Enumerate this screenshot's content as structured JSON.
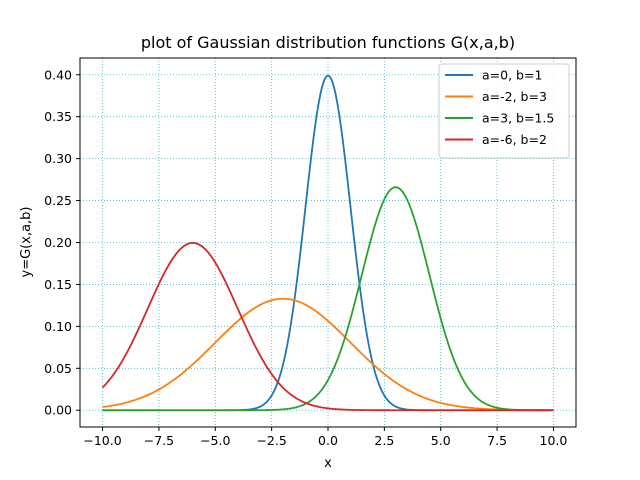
{
  "chart_data": {
    "type": "line",
    "title": "plot of Gaussian distribution functions G(x,a,b)",
    "xlabel": "x",
    "ylabel": "y=G(x,a,b)",
    "xlim": [
      -11,
      11
    ],
    "ylim": [
      -0.02,
      0.42
    ],
    "xticks": [
      -10.0,
      -7.5,
      -5.0,
      -2.5,
      0.0,
      2.5,
      5.0,
      7.5,
      10.0
    ],
    "xtick_labels": [
      "−10.0",
      "−7.5",
      "−5.0",
      "−2.5",
      "0.0",
      "2.5",
      "5.0",
      "7.5",
      "10.0"
    ],
    "yticks": [
      0.0,
      0.05,
      0.1,
      0.15,
      0.2,
      0.25,
      0.3,
      0.35,
      0.4
    ],
    "ytick_labels": [
      "0.00",
      "0.05",
      "0.10",
      "0.15",
      "0.20",
      "0.25",
      "0.30",
      "0.35",
      "0.40"
    ],
    "grid": true,
    "grid_color": "#3fb7c8",
    "legend_position": "top-right",
    "x_range": [
      -10,
      10
    ],
    "series": [
      {
        "name": "a=0, b=1",
        "a": 0,
        "b": 1,
        "color": "#1f77b4"
      },
      {
        "name": "a=-2, b=3",
        "a": -2,
        "b": 3,
        "color": "#ff7f0e"
      },
      {
        "name": "a=3, b=1.5",
        "a": 3,
        "b": 1.5,
        "color": "#2ca02c"
      },
      {
        "name": "a=-6, b=2",
        "a": -6,
        "b": 2,
        "color": "#d62728"
      }
    ]
  }
}
